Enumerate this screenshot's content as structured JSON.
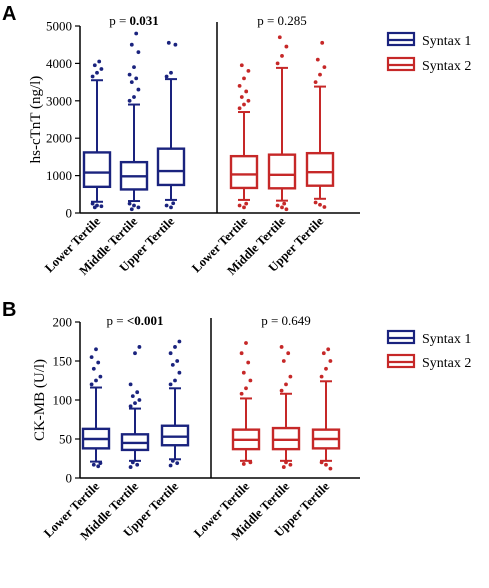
{
  "chart_data": [
    {
      "panel_label": "A",
      "type": "box",
      "ylabel": "hs-cTnT (ng/l)",
      "ylim": [
        0,
        5000
      ],
      "yticks": [
        0,
        1000,
        2000,
        3000,
        4000,
        5000
      ],
      "categories": [
        "Lower Tertile",
        "Middle Tertile",
        "Upper Tertile"
      ],
      "legend_position": "right",
      "groups": [
        {
          "name": "Syntax 1",
          "color": "#1a237e",
          "p_prefix": "p = ",
          "p_value": "0.031",
          "p_bold": true,
          "boxes": [
            {
              "whisker_low": 300,
              "q1": 700,
              "median": 1080,
              "q3": 1620,
              "whisker_high": 3550,
              "outliers": [
                3650,
                3750,
                3850,
                3950,
                4050,
                250,
                200,
                180,
                150
              ]
            },
            {
              "whisker_low": 320,
              "q1": 630,
              "median": 980,
              "q3": 1360,
              "whisker_high": 2900,
              "outliers": [
                3000,
                3100,
                3300,
                3500,
                3600,
                3700,
                3900,
                4300,
                4500,
                4800,
                250,
                200,
                150,
                100
              ]
            },
            {
              "whisker_low": 350,
              "q1": 750,
              "median": 1120,
              "q3": 1720,
              "whisker_high": 3580,
              "outliers": [
                3650,
                3750,
                4500,
                4550,
                260,
                200,
                150
              ]
            }
          ]
        },
        {
          "name": "Syntax 2",
          "color": "#c62828",
          "p_prefix": "p = ",
          "p_value": "0.285",
          "p_bold": false,
          "boxes": [
            {
              "whisker_low": 350,
              "q1": 670,
              "median": 1030,
              "q3": 1520,
              "whisker_high": 2700,
              "outliers": [
                2800,
                2900,
                3000,
                3100,
                3250,
                3400,
                3600,
                3800,
                3950,
                250,
                200,
                150
              ]
            },
            {
              "whisker_low": 330,
              "q1": 660,
              "median": 1020,
              "q3": 1560,
              "whisker_high": 3880,
              "outliers": [
                4000,
                4200,
                4450,
                4700,
                250,
                200,
                150,
                100
              ]
            },
            {
              "whisker_low": 380,
              "q1": 730,
              "median": 1090,
              "q3": 1600,
              "whisker_high": 3380,
              "outliers": [
                3500,
                3700,
                3900,
                4100,
                4550,
                280,
                220,
                160
              ]
            }
          ]
        }
      ]
    },
    {
      "panel_label": "B",
      "type": "box",
      "ylabel": "CK-MB (U/l)",
      "ylim": [
        0,
        200
      ],
      "yticks": [
        0,
        50,
        100,
        150,
        200
      ],
      "categories": [
        "Lower Tertile",
        "Middle Tertile",
        "Upper Tertile"
      ],
      "legend_position": "right",
      "groups": [
        {
          "name": "Syntax 1",
          "color": "#1a237e",
          "p_prefix": "p = ",
          "p_value": "<0.001",
          "p_bold": true,
          "boxes": [
            {
              "whisker_low": 21,
              "q1": 38,
              "median": 50,
              "q3": 63,
              "whisker_high": 116,
              "outliers": [
                120,
                125,
                130,
                140,
                148,
                155,
                165,
                19,
                17,
                15
              ]
            },
            {
              "whisker_low": 22,
              "q1": 36,
              "median": 45,
              "q3": 56,
              "whisker_high": 89,
              "outliers": [
                92,
                96,
                100,
                105,
                110,
                120,
                160,
                168,
                20,
                17,
                14
              ]
            },
            {
              "whisker_low": 24,
              "q1": 42,
              "median": 53,
              "q3": 67,
              "whisker_high": 115,
              "outliers": [
                120,
                125,
                135,
                145,
                150,
                160,
                168,
                175,
                22,
                19,
                16
              ]
            }
          ]
        },
        {
          "name": "Syntax 2",
          "color": "#c62828",
          "p_prefix": "p = ",
          "p_value": "0.649",
          "p_bold": false,
          "boxes": [
            {
              "whisker_low": 22,
              "q1": 37,
              "median": 49,
              "q3": 62,
              "whisker_high": 102,
              "outliers": [
                108,
                115,
                125,
                135,
                148,
                160,
                173,
                20,
                18
              ]
            },
            {
              "whisker_low": 22,
              "q1": 37,
              "median": 49,
              "q3": 64,
              "whisker_high": 108,
              "outliers": [
                112,
                120,
                130,
                150,
                160,
                168,
                20,
                17,
                14
              ]
            },
            {
              "whisker_low": 22,
              "q1": 38,
              "median": 50,
              "q3": 62,
              "whisker_high": 124,
              "outliers": [
                130,
                140,
                150,
                160,
                165,
                20,
                17,
                12
              ]
            }
          ]
        }
      ]
    }
  ]
}
